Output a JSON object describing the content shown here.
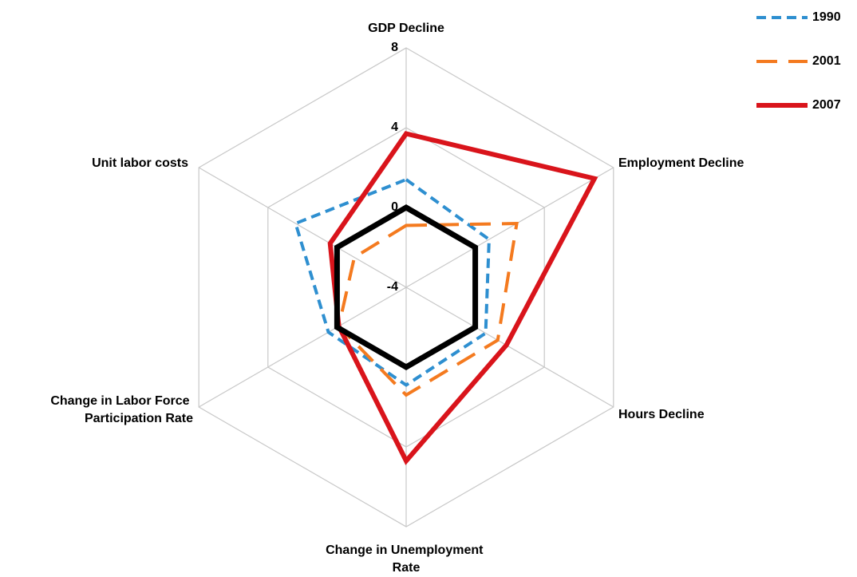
{
  "chart_data": {
    "type": "radar",
    "categories": [
      "GDP Decline",
      "Employment Decline",
      "Hours Decline",
      "Change in Unemployment Rate",
      "Change in Labor Force Participation Rate",
      "Unit labor costs"
    ],
    "series": [
      {
        "name": "1990",
        "color": "#2e8fd0",
        "dash": "short",
        "values": [
          1.4,
          0.8,
          0.6,
          0.9,
          0.5,
          2.4
        ]
      },
      {
        "name": "2001",
        "color": "#f47a1f",
        "dash": "long",
        "values": [
          -0.9,
          2.4,
          1.3,
          1.4,
          -0.1,
          -1.0
        ]
      },
      {
        "name": "2007",
        "color": "#d9141b",
        "dash": "solid",
        "values": [
          3.7,
          6.9,
          1.8,
          4.7,
          -0.1,
          0.4
        ]
      }
    ],
    "ylim": [
      -4,
      8
    ],
    "yticks": [
      -4,
      0,
      4,
      8
    ],
    "grid": true,
    "zero_line": true,
    "legend": "top-right"
  }
}
